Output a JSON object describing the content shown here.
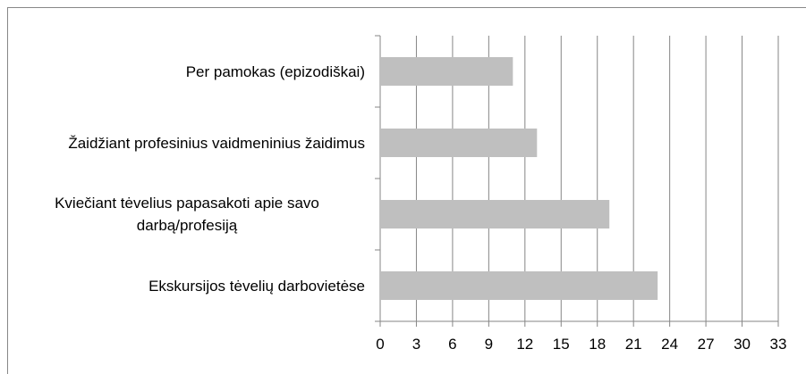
{
  "chart_data": {
    "type": "bar",
    "orientation": "horizontal",
    "categories": [
      "Per pamokas (epizodiškai)",
      "Žaidžiant profesinius vaidmeninius žaidimus",
      "Kviečiant tėvelius papasakoti apie savo darbą/profesiją",
      "Ekskursijos tėvelių darbovietėse"
    ],
    "values": [
      11,
      13,
      19,
      23
    ],
    "color": "#bfbfbf",
    "xlim": [
      0,
      33
    ],
    "xticks": [
      0,
      3,
      6,
      9,
      12,
      15,
      18,
      21,
      24,
      27,
      30,
      33
    ],
    "grid": true
  }
}
